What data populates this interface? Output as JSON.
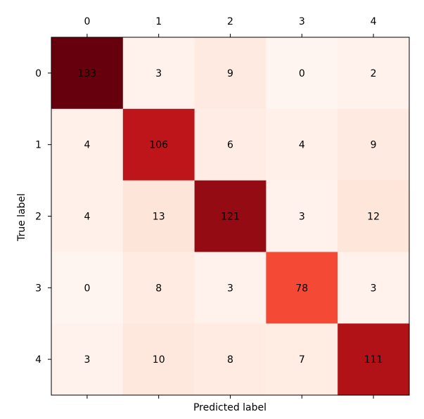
{
  "chart_data": {
    "type": "heatmap",
    "colormap": "Reds",
    "x_categories": [
      "0",
      "1",
      "2",
      "3",
      "4"
    ],
    "y_categories": [
      "0",
      "1",
      "2",
      "3",
      "4"
    ],
    "values": [
      [
        133,
        3,
        9,
        0,
        2
      ],
      [
        4,
        106,
        6,
        4,
        9
      ],
      [
        4,
        13,
        121,
        3,
        12
      ],
      [
        0,
        8,
        3,
        78,
        3
      ],
      [
        3,
        10,
        8,
        7,
        111
      ]
    ],
    "vmin": 0,
    "vmax": 133,
    "xlabel": "Predicted label",
    "ylabel": "True label",
    "x_tick_position": "top",
    "grid": false,
    "legend": "none"
  }
}
